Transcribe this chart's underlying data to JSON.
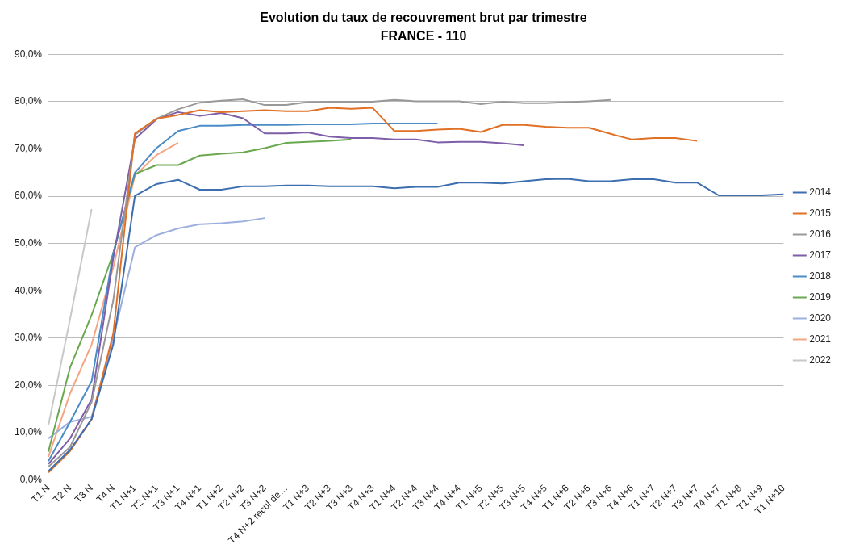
{
  "chart_data": {
    "type": "line",
    "title": "Evolution du taux de recouvrement brut par trimestre",
    "subtitle": "FRANCE - 110",
    "categories": [
      "T1 N",
      "T2 N",
      "T3 N",
      "T4 N",
      "T1 N+1",
      "T2 N+1",
      "T3 N+1",
      "T4 N+1",
      "T1 N+2",
      "T2 N+2",
      "T3 N+2",
      "T4 N+2 recul de…",
      "T1 N+3",
      "T2 N+3",
      "T3 N+3",
      "T4 N+3",
      "T1 N+4",
      "T2 N+4",
      "T3 N+4",
      "T4 N+4",
      "T1 N+5",
      "T2 N+5",
      "T3 N+5",
      "T4 N+5",
      "T1 N+6",
      "T2 N+6",
      "T3 N+6",
      "T4 N+6",
      "T1 N+7",
      "T2 N+7",
      "T3 N+7",
      "T4 N+7",
      "T1 N+8",
      "T1 N+9",
      "T1 N+10"
    ],
    "series": [
      {
        "name": "2014",
        "color": "#3d6eb0",
        "values": [
          1.9,
          6.4,
          12.9,
          28.7,
          60.1,
          62.6,
          63.5,
          61.4,
          61.4,
          62.1,
          62.1,
          62.3,
          62.3,
          62.1,
          62.1,
          62.1,
          61.7,
          62.0,
          62.0,
          62.9,
          62.9,
          62.7,
          63.2,
          63.6,
          63.7,
          63.2,
          63.2,
          63.6,
          63.6,
          62.9,
          62.9,
          60.2,
          60.2,
          60.2,
          60.4
        ]
      },
      {
        "name": "2015",
        "color": "#e07025",
        "values": [
          1.6,
          6.1,
          12.9,
          31,
          73.3,
          76.4,
          77.2,
          78.2,
          77.8,
          78.0,
          78.2,
          78.0,
          78.0,
          78.7,
          78.5,
          78.7,
          73.8,
          73.8,
          74.1,
          74.3,
          73.6,
          75.1,
          75.1,
          74.7,
          74.5,
          74.5,
          73.2,
          72.0,
          72.3,
          72.3,
          71.7,
          null,
          null,
          null,
          null
        ]
      },
      {
        "name": "2016",
        "color": "#999999",
        "values": [
          2.8,
          7.0,
          16.5,
          38,
          73.0,
          76.4,
          78.4,
          79.8,
          80.2,
          80.5,
          79.3,
          79.3,
          79.9,
          80.0,
          80.0,
          80.0,
          80.4,
          80.1,
          80.1,
          80.1,
          79.5,
          80.0,
          79.7,
          79.7,
          79.9,
          80.1,
          80.4,
          null,
          null,
          null,
          null,
          null,
          null,
          null,
          null
        ]
      },
      {
        "name": "2017",
        "color": "#7e5ea8",
        "values": [
          3.4,
          8.8,
          17.1,
          47,
          72.1,
          76.3,
          77.8,
          77.0,
          77.6,
          76.5,
          73.3,
          73.3,
          73.5,
          72.6,
          72.3,
          72.3,
          72.0,
          72.0,
          71.4,
          71.5,
          71.5,
          71.2,
          70.8,
          null,
          null,
          null,
          null,
          null,
          null,
          null,
          null,
          null,
          null,
          null,
          null
        ]
      },
      {
        "name": "2018",
        "color": "#4a8bc8",
        "values": [
          4.0,
          12.3,
          20.9,
          48,
          65.0,
          70.2,
          73.8,
          74.9,
          74.9,
          75.1,
          75.1,
          75.1,
          75.2,
          75.2,
          75.2,
          75.4,
          75.4,
          75.4,
          75.4,
          null,
          null,
          null,
          null,
          null,
          null,
          null,
          null,
          null,
          null,
          null,
          null,
          null,
          null,
          null,
          null
        ]
      },
      {
        "name": "2019",
        "color": "#6aa84f",
        "values": [
          6.0,
          23.8,
          34.9,
          48,
          64.7,
          66.6,
          66.6,
          68.6,
          69.0,
          69.3,
          70.2,
          71.3,
          71.5,
          71.7,
          72.0,
          null,
          null,
          null,
          null,
          null,
          null,
          null,
          null,
          null,
          null,
          null,
          null,
          null,
          null,
          null,
          null,
          null,
          null,
          null,
          null
        ]
      },
      {
        "name": "2020",
        "color": "#9dafdf",
        "values": [
          8.8,
          12.3,
          13.4,
          30,
          49.2,
          51.8,
          53.2,
          54.1,
          54.3,
          54.7,
          55.4,
          null,
          null,
          null,
          null,
          null,
          null,
          null,
          null,
          null,
          null,
          null,
          null,
          null,
          null,
          null,
          null,
          null,
          null,
          null,
          null,
          null,
          null,
          null,
          null
        ]
      },
      {
        "name": "2021",
        "color": "#f4a582",
        "values": [
          4.9,
          18.3,
          28.7,
          45,
          64.4,
          68.7,
          71.3,
          null,
          null,
          null,
          null,
          null,
          null,
          null,
          null,
          null,
          null,
          null,
          null,
          null,
          null,
          null,
          null,
          null,
          null,
          null,
          null,
          null,
          null,
          null,
          null,
          null,
          null,
          null,
          null
        ]
      },
      {
        "name": "2022",
        "color": "#c8c8c8",
        "values": [
          11.6,
          34,
          57.3,
          null,
          null,
          null,
          null,
          null,
          null,
          null,
          null,
          null,
          null,
          null,
          null,
          null,
          null,
          null,
          null,
          null,
          null,
          null,
          null,
          null,
          null,
          null,
          null,
          null,
          null,
          null,
          null,
          null,
          null,
          null,
          null
        ]
      }
    ],
    "ylim": [
      0,
      90
    ],
    "yticks": [
      {
        "value": 0,
        "label": "0,0%"
      },
      {
        "value": 10,
        "label": "10,0%"
      },
      {
        "value": 20,
        "label": "20,0%"
      },
      {
        "value": 30,
        "label": "30,0%"
      },
      {
        "value": 40,
        "label": "40,0%"
      },
      {
        "value": 50,
        "label": "50,0%"
      },
      {
        "value": 60,
        "label": "60,0%"
      },
      {
        "value": 70,
        "label": "70,0%"
      },
      {
        "value": 80,
        "label": "80,0%"
      },
      {
        "value": 90,
        "label": "90,0%"
      }
    ],
    "grid": "y",
    "legend": "right",
    "marker": "none",
    "line_style": "solid"
  }
}
